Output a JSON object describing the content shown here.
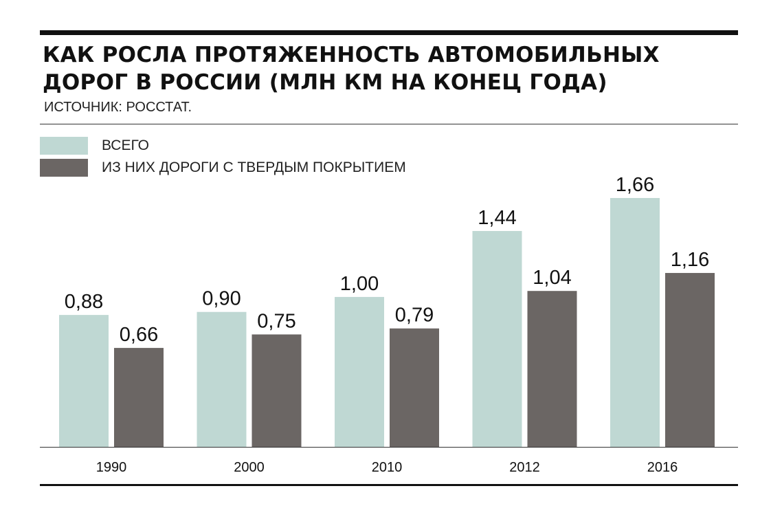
{
  "title_lines": [
    "КАК РОСЛА ПРОТЯЖЕННОСТЬ АВТОМОБИЛЬНЫХ",
    "ДОРОГ В РОССИИ (МЛН КМ НА КОНЕЦ ГОДА)"
  ],
  "source": "ИСТОЧНИК: РОССТАТ.",
  "chart_data": {
    "type": "bar",
    "categories": [
      "1990",
      "2000",
      "2010",
      "2012",
      "2016"
    ],
    "series": [
      {
        "name": "ВСЕГО",
        "values": [
          0.88,
          0.9,
          1.0,
          1.44,
          1.66
        ],
        "labels": [
          "0,88",
          "0,90",
          "1,00",
          "1,44",
          "1,66"
        ],
        "color": "#bfd8d3"
      },
      {
        "name": "ИЗ НИХ ДОРОГИ С ТВЕРДЫМ ПОКРЫТИЕМ",
        "values": [
          0.66,
          0.75,
          0.79,
          1.04,
          1.16
        ],
        "labels": [
          "0,66",
          "0,75",
          "0,79",
          "1,04",
          "1,16"
        ],
        "color": "#6b6664"
      }
    ],
    "ylim": [
      0,
      1.66
    ],
    "grid": false,
    "legend": "top-left"
  }
}
